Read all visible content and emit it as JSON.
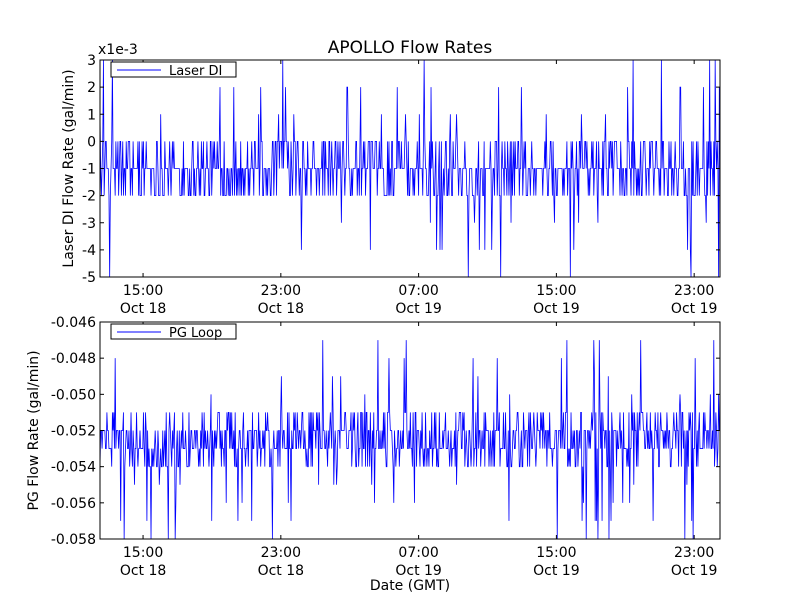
{
  "figure": {
    "title": "APOLLO Flow Rates",
    "xlabel": "Date (GMT)"
  },
  "chart_data": [
    {
      "type": "line",
      "title": "APOLLO Flow Rates",
      "ylabel": "Laser DI Flow Rate (gal/min)",
      "yscale_label": "x1e-3",
      "ylim": [
        -5,
        3
      ],
      "yticks": [
        -5,
        -4,
        -3,
        -2,
        -1,
        0,
        1,
        2,
        3
      ],
      "ytick_labels": [
        "-5",
        "-4",
        "-3",
        "-2",
        "-1",
        "0",
        "1",
        "2",
        "3"
      ],
      "xlim": [
        "2014-10-18 12:30",
        "2014-10-20 00:30"
      ],
      "xticks": [
        "2014-10-18 15:00",
        "2014-10-18 23:00",
        "2014-10-19 07:00",
        "2014-10-19 15:00",
        "2014-10-19 23:00"
      ],
      "xtick_time": [
        "15:00",
        "23:00",
        "07:00",
        "15:00",
        "23:00"
      ],
      "xtick_date": [
        "Oct 18",
        "Oct 18",
        "Oct 19",
        "Oct 19",
        "Oct 19"
      ],
      "legend": {
        "entries": [
          "Laser DI"
        ],
        "position": "top-left"
      },
      "series": [
        {
          "name": "Laser DI",
          "color": "#0000ff",
          "typical_value": -1.5,
          "noise_range": [
            -2,
            0
          ],
          "spike_high": [
            1,
            2,
            3
          ],
          "spike_low": [
            -3,
            -4,
            -5
          ]
        }
      ]
    },
    {
      "type": "line",
      "ylabel": "PG Flow Rate (gal/min)",
      "ylim": [
        -0.058,
        -0.046
      ],
      "yticks": [
        -0.058,
        -0.056,
        -0.054,
        -0.052,
        -0.05,
        -0.048,
        -0.046
      ],
      "ytick_labels": [
        "-0.058",
        "-0.056",
        "-0.054",
        "-0.052",
        "-0.050",
        "-0.048",
        "-0.046"
      ],
      "xlim": [
        "2014-10-18 12:30",
        "2014-10-20 00:30"
      ],
      "xticks": [
        "2014-10-18 15:00",
        "2014-10-18 23:00",
        "2014-10-19 07:00",
        "2014-10-19 15:00",
        "2014-10-19 23:00"
      ],
      "xtick_time": [
        "15:00",
        "23:00",
        "07:00",
        "15:00",
        "23:00"
      ],
      "xtick_date": [
        "Oct 18",
        "Oct 18",
        "Oct 19",
        "Oct 19",
        "Oct 19"
      ],
      "xlabel": "Date (GMT)",
      "legend": {
        "entries": [
          "PG Loop"
        ],
        "position": "top-left"
      },
      "series": [
        {
          "name": "PG Loop",
          "color": "#0000ff",
          "typical_value": -0.0525,
          "noise_range": [
            -0.054,
            -0.051
          ],
          "spike_high": [
            -0.05,
            -0.049,
            -0.048,
            -0.047
          ],
          "spike_low": [
            -0.055,
            -0.056,
            -0.057,
            -0.058
          ]
        }
      ]
    }
  ]
}
